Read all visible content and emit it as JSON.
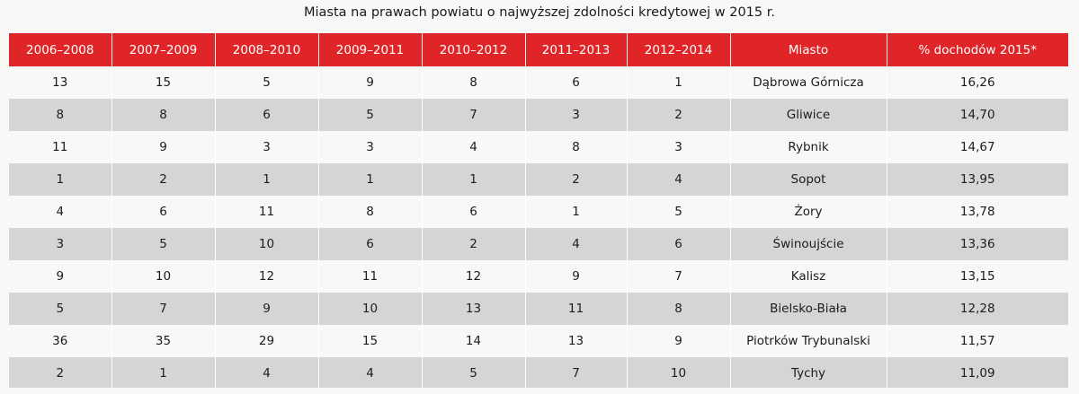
{
  "title": "Miasta na prawach powiatu o najwyższej zdolności kredytowej w 2015 r.",
  "columns": [
    "2006–2008",
    "2007–2009",
    "2008–2010",
    "2009–2011",
    "2010–2012",
    "2011–2013",
    "2012–2014",
    "Miasto",
    "% dochodów 2015*"
  ],
  "rows": [
    [
      "13",
      "15",
      "5",
      "9",
      "8",
      "6",
      "1",
      "Dąbrowa Górnicza",
      "16,26"
    ],
    [
      "8",
      "8",
      "6",
      "5",
      "7",
      "3",
      "2",
      "Gliwice",
      "14,70"
    ],
    [
      "11",
      "9",
      "3",
      "3",
      "4",
      "8",
      "3",
      "Rybnik",
      "14,67"
    ],
    [
      "1",
      "2",
      "1",
      "1",
      "1",
      "2",
      "4",
      "Sopot",
      "13,95"
    ],
    [
      "4",
      "6",
      "11",
      "8",
      "6",
      "1",
      "5",
      "Żory",
      "13,78"
    ],
    [
      "3",
      "5",
      "10",
      "6",
      "2",
      "4",
      "6",
      "Świnoujście",
      "13,36"
    ],
    [
      "9",
      "10",
      "12",
      "11",
      "12",
      "9",
      "7",
      "Kalisz",
      "13,15"
    ],
    [
      "5",
      "7",
      "9",
      "10",
      "13",
      "11",
      "8",
      "Bielsko-Biała",
      "12,28"
    ],
    [
      "36",
      "35",
      "29",
      "15",
      "14",
      "13",
      "9",
      "Piotrków Trybunalski",
      "11,57"
    ],
    [
      "2",
      "1",
      "4",
      "4",
      "5",
      "7",
      "10",
      "Tychy",
      "11,09"
    ]
  ],
  "colors": {
    "header_bg": "#e02528",
    "header_text": "#ffffff",
    "row_stripe": "#d5d6d4",
    "row_plain": "#f8f8f6"
  }
}
